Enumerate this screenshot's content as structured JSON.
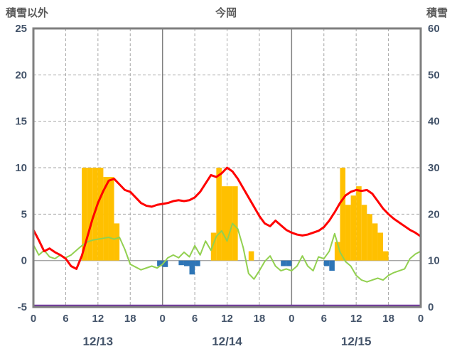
{
  "header": {
    "left_axis_title": "積雪以外",
    "title": "今岡",
    "right_axis_title": "積雪"
  },
  "chart_data": {
    "type": "combo",
    "title": "今岡",
    "left_axis": {
      "label": "積雪以外",
      "min": -5,
      "max": 25,
      "ticks": [
        25,
        20,
        15,
        10,
        5,
        0,
        -5
      ]
    },
    "right_axis": {
      "label": "積雪",
      "min": 0,
      "max": 60,
      "ticks": [
        60,
        50,
        40,
        30,
        20,
        10,
        0
      ]
    },
    "x_axis": {
      "total_hours": 72,
      "tick_interval_hours": 6,
      "tick_labels": [
        "0",
        "6",
        "12",
        "18",
        "0",
        "6",
        "12",
        "18",
        "0",
        "6",
        "12",
        "18",
        "0"
      ],
      "date_labels": [
        "12/13",
        "12/14",
        "12/15"
      ],
      "date_label_hours": [
        12,
        36,
        60
      ]
    },
    "colors": {
      "frame": "#7F7F7F",
      "grid_dashed": "#A6A6A6",
      "grid_solid": "#808080",
      "tick_text": "#44546A",
      "title_text": "#595959",
      "red_line": "#FF0000",
      "green_line": "#92D050",
      "orange_bars": "#FFC000",
      "blue_bars": "#2E75B6",
      "purple_line": "#7030A0"
    },
    "grid": {
      "horizontal_dashed_at": [
        20,
        15,
        10,
        5
      ],
      "zero_line": true,
      "vertical_every_hours": 6,
      "solid_vertical_at_day_boundaries": true
    },
    "series": [
      {
        "name": "orange-bars",
        "type": "bar",
        "axis": "left",
        "color": "#FFC000",
        "bars": [
          [
            9,
            10
          ],
          [
            10,
            10
          ],
          [
            11,
            10
          ],
          [
            12,
            10
          ],
          [
            13,
            9
          ],
          [
            14,
            9
          ],
          [
            15,
            4
          ],
          [
            33,
            3
          ],
          [
            34,
            10
          ],
          [
            35,
            8
          ],
          [
            36,
            8
          ],
          [
            37,
            8
          ],
          [
            40,
            1
          ],
          [
            56,
            2
          ],
          [
            57,
            10
          ],
          [
            58,
            6
          ],
          [
            59,
            7
          ],
          [
            60,
            8
          ],
          [
            61,
            6
          ],
          [
            62,
            5
          ],
          [
            63,
            4
          ],
          [
            64,
            3
          ],
          [
            65,
            1
          ]
        ]
      },
      {
        "name": "blue-bars",
        "type": "bar",
        "axis": "left",
        "color": "#2E75B6",
        "bars": [
          [
            23,
            -0.6
          ],
          [
            24,
            -0.7
          ],
          [
            27,
            -0.5
          ],
          [
            28,
            -0.6
          ],
          [
            29,
            -1.5
          ],
          [
            30,
            -0.6
          ],
          [
            46,
            -0.6
          ],
          [
            47,
            -0.6
          ],
          [
            54,
            -0.6
          ],
          [
            55,
            -1.1
          ]
        ]
      },
      {
        "name": "green-line",
        "type": "line",
        "axis": "left",
        "color": "#92D050",
        "width": 2,
        "values": [
          1.7,
          0.6,
          1.1,
          0.4,
          0.2,
          0.6,
          0.3,
          0.6,
          1.1,
          1.6,
          2.0,
          2.2,
          2.3,
          2.4,
          2.5,
          2.3,
          2.5,
          1.2,
          -0.4,
          -0.7,
          -1.0,
          -0.8,
          -0.6,
          -0.8,
          -0.4,
          0.3,
          0.6,
          0.3,
          0.9,
          0.4,
          1.6,
          0.6,
          2.1,
          1.1,
          2.6,
          3.2,
          2.1,
          4.0,
          3.4,
          1.4,
          -1.4,
          -2.0,
          -1.1,
          -0.1,
          0.5,
          -0.6,
          -1.1,
          -0.9,
          -1.1,
          -0.6,
          0.5,
          -0.6,
          -1.1,
          0.4,
          0.2,
          1.0,
          2.9,
          0.9,
          -0.1,
          -0.6,
          -1.6,
          -2.1,
          -2.3,
          -2.1,
          -1.9,
          -2.1,
          -1.6,
          -1.3,
          -1.1,
          -0.9,
          0.2,
          0.7,
          1.0
        ]
      },
      {
        "name": "red-line",
        "type": "line",
        "axis": "left",
        "color": "#FF0000",
        "width": 3,
        "values": [
          3.3,
          2.2,
          1.0,
          1.3,
          0.9,
          0.6,
          0.2,
          -0.6,
          -0.9,
          0.5,
          2.5,
          4.5,
          6.2,
          7.5,
          8.6,
          8.8,
          8.2,
          7.6,
          7.4,
          6.8,
          6.2,
          5.9,
          5.8,
          6.0,
          6.1,
          6.2,
          6.4,
          6.5,
          6.4,
          6.5,
          6.8,
          7.4,
          8.3,
          9.2,
          9.0,
          9.4,
          10.0,
          9.6,
          8.8,
          7.8,
          6.8,
          5.8,
          4.8,
          4.0,
          3.7,
          4.3,
          3.8,
          3.3,
          3.0,
          2.8,
          2.7,
          2.8,
          3.0,
          3.2,
          3.6,
          4.3,
          5.2,
          6.2,
          7.0,
          7.4,
          7.6,
          7.5,
          7.6,
          7.2,
          6.4,
          5.6,
          5.0,
          4.5,
          4.1,
          3.7,
          3.3,
          3.0,
          2.6
        ]
      },
      {
        "name": "purple-line",
        "type": "line",
        "axis": "right",
        "color": "#7030A0",
        "width": 2.5,
        "points": [
          [
            0,
            0
          ],
          [
            72,
            0
          ]
        ]
      }
    ]
  }
}
